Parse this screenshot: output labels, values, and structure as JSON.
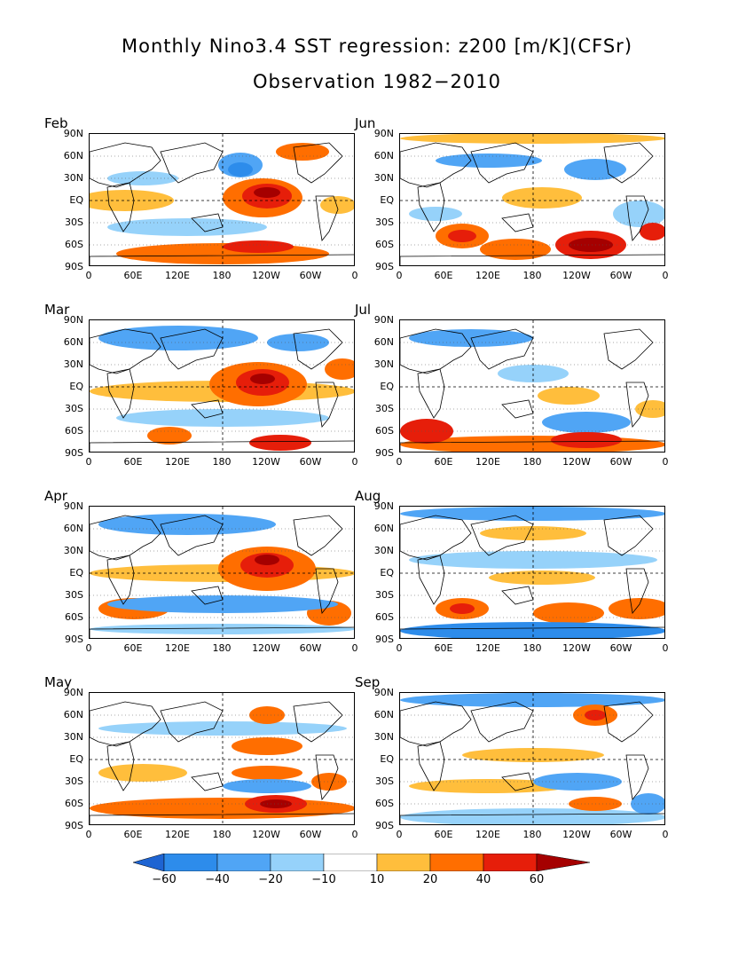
{
  "title": "Monthly Nino3.4 SST regression: z200 [m/K](CFSr)",
  "subtitle": "Observation 1982−2010",
  "lat_labels": [
    "90N",
    "60N",
    "30N",
    "EQ",
    "30S",
    "60S",
    "90S"
  ],
  "lon_labels": [
    "0",
    "60E",
    "120E",
    "180",
    "120W",
    "60W",
    "0"
  ],
  "panels": [
    {
      "label": "Feb",
      "blobs": [
        {
          "cx": 195,
          "cy": 72,
          "rx": 45,
          "ry": 22,
          "lvl": 2
        },
        {
          "cx": 200,
          "cy": 70,
          "rx": 28,
          "ry": 14,
          "lvl": 3
        },
        {
          "cx": 200,
          "cy": 66,
          "rx": 15,
          "ry": 6,
          "lvl": 4
        },
        {
          "cx": 40,
          "cy": 75,
          "rx": 55,
          "ry": 12,
          "lvl": 1
        },
        {
          "cx": 170,
          "cy": 35,
          "rx": 25,
          "ry": 14,
          "lvl": -2
        },
        {
          "cx": 170,
          "cy": 40,
          "rx": 14,
          "ry": 8,
          "lvl": -3
        },
        {
          "cx": 240,
          "cy": 20,
          "rx": 30,
          "ry": 10,
          "lvl": 2
        },
        {
          "cx": 150,
          "cy": 135,
          "rx": 120,
          "ry": 12,
          "lvl": 2
        },
        {
          "cx": 190,
          "cy": 127,
          "rx": 40,
          "ry": 7,
          "lvl": 3
        },
        {
          "cx": 110,
          "cy": 105,
          "rx": 90,
          "ry": 10,
          "lvl": -1
        },
        {
          "cx": 60,
          "cy": 50,
          "rx": 40,
          "ry": 8,
          "lvl": -1
        },
        {
          "cx": 280,
          "cy": 80,
          "rx": 20,
          "ry": 10,
          "lvl": 1
        }
      ]
    },
    {
      "label": "Jun",
      "blobs": [
        {
          "cx": 150,
          "cy": 5,
          "rx": 150,
          "ry": 6,
          "lvl": 1
        },
        {
          "cx": 160,
          "cy": 72,
          "rx": 45,
          "ry": 12,
          "lvl": 1
        },
        {
          "cx": 70,
          "cy": 115,
          "rx": 30,
          "ry": 14,
          "lvl": 2
        },
        {
          "cx": 70,
          "cy": 115,
          "rx": 16,
          "ry": 7,
          "lvl": 3
        },
        {
          "cx": 130,
          "cy": 130,
          "rx": 40,
          "ry": 12,
          "lvl": 2
        },
        {
          "cx": 215,
          "cy": 125,
          "rx": 40,
          "ry": 16,
          "lvl": 3
        },
        {
          "cx": 215,
          "cy": 125,
          "rx": 25,
          "ry": 8,
          "lvl": 4
        },
        {
          "cx": 285,
          "cy": 110,
          "rx": 15,
          "ry": 10,
          "lvl": 3
        },
        {
          "cx": 100,
          "cy": 30,
          "rx": 60,
          "ry": 8,
          "lvl": -2
        },
        {
          "cx": 220,
          "cy": 40,
          "rx": 35,
          "ry": 12,
          "lvl": -2
        },
        {
          "cx": 40,
          "cy": 90,
          "rx": 30,
          "ry": 8,
          "lvl": -1
        },
        {
          "cx": 270,
          "cy": 90,
          "rx": 30,
          "ry": 15,
          "lvl": -1
        }
      ]
    },
    {
      "label": "Mar",
      "blobs": [
        {
          "cx": 150,
          "cy": 80,
          "rx": 150,
          "ry": 12,
          "lvl": 1
        },
        {
          "cx": 190,
          "cy": 72,
          "rx": 55,
          "ry": 25,
          "lvl": 2
        },
        {
          "cx": 195,
          "cy": 70,
          "rx": 30,
          "ry": 15,
          "lvl": 3
        },
        {
          "cx": 195,
          "cy": 66,
          "rx": 14,
          "ry": 6,
          "lvl": 4
        },
        {
          "cx": 100,
          "cy": 20,
          "rx": 90,
          "ry": 14,
          "lvl": -2
        },
        {
          "cx": 235,
          "cy": 25,
          "rx": 35,
          "ry": 10,
          "lvl": -2
        },
        {
          "cx": 90,
          "cy": 130,
          "rx": 25,
          "ry": 10,
          "lvl": 2
        },
        {
          "cx": 215,
          "cy": 138,
          "rx": 35,
          "ry": 9,
          "lvl": 3
        },
        {
          "cx": 150,
          "cy": 110,
          "rx": 120,
          "ry": 10,
          "lvl": -1
        },
        {
          "cx": 285,
          "cy": 55,
          "rx": 20,
          "ry": 12,
          "lvl": 2
        }
      ]
    },
    {
      "label": "Jul",
      "blobs": [
        {
          "cx": 150,
          "cy": 140,
          "rx": 150,
          "ry": 10,
          "lvl": 2
        },
        {
          "cx": 210,
          "cy": 135,
          "rx": 40,
          "ry": 9,
          "lvl": 3
        },
        {
          "cx": 30,
          "cy": 125,
          "rx": 30,
          "ry": 14,
          "lvl": 3
        },
        {
          "cx": 190,
          "cy": 85,
          "rx": 35,
          "ry": 10,
          "lvl": 1
        },
        {
          "cx": 210,
          "cy": 115,
          "rx": 50,
          "ry": 12,
          "lvl": -2
        },
        {
          "cx": 150,
          "cy": 60,
          "rx": 40,
          "ry": 10,
          "lvl": -1
        },
        {
          "cx": 80,
          "cy": 20,
          "rx": 70,
          "ry": 10,
          "lvl": -2
        },
        {
          "cx": 285,
          "cy": 100,
          "rx": 20,
          "ry": 10,
          "lvl": 1
        }
      ]
    },
    {
      "label": "Apr",
      "blobs": [
        {
          "cx": 150,
          "cy": 75,
          "rx": 150,
          "ry": 10,
          "lvl": 1
        },
        {
          "cx": 200,
          "cy": 70,
          "rx": 55,
          "ry": 25,
          "lvl": 2
        },
        {
          "cx": 200,
          "cy": 66,
          "rx": 30,
          "ry": 14,
          "lvl": 3
        },
        {
          "cx": 200,
          "cy": 60,
          "rx": 14,
          "ry": 6,
          "lvl": 4
        },
        {
          "cx": 110,
          "cy": 20,
          "rx": 100,
          "ry": 12,
          "lvl": -2
        },
        {
          "cx": 50,
          "cy": 115,
          "rx": 40,
          "ry": 12,
          "lvl": 2
        },
        {
          "cx": 270,
          "cy": 120,
          "rx": 25,
          "ry": 14,
          "lvl": 2
        },
        {
          "cx": 150,
          "cy": 110,
          "rx": 130,
          "ry": 10,
          "lvl": -2
        },
        {
          "cx": 150,
          "cy": 138,
          "rx": 150,
          "ry": 6,
          "lvl": -1
        }
      ]
    },
    {
      "label": "Aug",
      "blobs": [
        {
          "cx": 150,
          "cy": 8,
          "rx": 150,
          "ry": 8,
          "lvl": -2
        },
        {
          "cx": 150,
          "cy": 140,
          "rx": 150,
          "ry": 10,
          "lvl": -3
        },
        {
          "cx": 70,
          "cy": 115,
          "rx": 30,
          "ry": 12,
          "lvl": 2
        },
        {
          "cx": 70,
          "cy": 115,
          "rx": 14,
          "ry": 6,
          "lvl": 3
        },
        {
          "cx": 190,
          "cy": 120,
          "rx": 40,
          "ry": 12,
          "lvl": 2
        },
        {
          "cx": 270,
          "cy": 115,
          "rx": 35,
          "ry": 12,
          "lvl": 2
        },
        {
          "cx": 160,
          "cy": 80,
          "rx": 60,
          "ry": 8,
          "lvl": 1
        },
        {
          "cx": 150,
          "cy": 60,
          "rx": 140,
          "ry": 10,
          "lvl": -1
        },
        {
          "cx": 150,
          "cy": 30,
          "rx": 60,
          "ry": 8,
          "lvl": 1
        }
      ]
    },
    {
      "label": "May",
      "blobs": [
        {
          "cx": 150,
          "cy": 130,
          "rx": 150,
          "ry": 12,
          "lvl": 2
        },
        {
          "cx": 210,
          "cy": 125,
          "rx": 35,
          "ry": 10,
          "lvl": 3
        },
        {
          "cx": 210,
          "cy": 125,
          "rx": 18,
          "ry": 5,
          "lvl": 4
        },
        {
          "cx": 200,
          "cy": 60,
          "rx": 40,
          "ry": 10,
          "lvl": 2
        },
        {
          "cx": 200,
          "cy": 90,
          "rx": 40,
          "ry": 8,
          "lvl": 2
        },
        {
          "cx": 200,
          "cy": 25,
          "rx": 20,
          "ry": 10,
          "lvl": 2
        },
        {
          "cx": 150,
          "cy": 40,
          "rx": 140,
          "ry": 8,
          "lvl": -1
        },
        {
          "cx": 200,
          "cy": 105,
          "rx": 50,
          "ry": 8,
          "lvl": -2
        },
        {
          "cx": 270,
          "cy": 100,
          "rx": 20,
          "ry": 10,
          "lvl": 2
        },
        {
          "cx": 60,
          "cy": 90,
          "rx": 50,
          "ry": 10,
          "lvl": 1
        }
      ]
    },
    {
      "label": "Sep",
      "blobs": [
        {
          "cx": 150,
          "cy": 8,
          "rx": 150,
          "ry": 8,
          "lvl": -2
        },
        {
          "cx": 220,
          "cy": 25,
          "rx": 25,
          "ry": 12,
          "lvl": 2
        },
        {
          "cx": 220,
          "cy": 25,
          "rx": 12,
          "ry": 6,
          "lvl": 3
        },
        {
          "cx": 150,
          "cy": 70,
          "rx": 80,
          "ry": 8,
          "lvl": 1
        },
        {
          "cx": 200,
          "cy": 100,
          "rx": 50,
          "ry": 10,
          "lvl": -2
        },
        {
          "cx": 220,
          "cy": 125,
          "rx": 30,
          "ry": 8,
          "lvl": 2
        },
        {
          "cx": 280,
          "cy": 125,
          "rx": 20,
          "ry": 12,
          "lvl": -2
        },
        {
          "cx": 100,
          "cy": 105,
          "rx": 90,
          "ry": 8,
          "lvl": 1
        },
        {
          "cx": 150,
          "cy": 140,
          "rx": 150,
          "ry": 10,
          "lvl": -1
        }
      ]
    }
  ],
  "colorbar": {
    "labels": [
      "−60",
      "−40",
      "−20",
      "−10",
      "10",
      "20",
      "40",
      "60"
    ],
    "colors": [
      "#1e64d2",
      "#2d8ceb",
      "#50a5f5",
      "#96d2fa",
      "#ffffff",
      "#ffbe3c",
      "#ff6e00",
      "#e61e0a",
      "#a50000"
    ]
  }
}
